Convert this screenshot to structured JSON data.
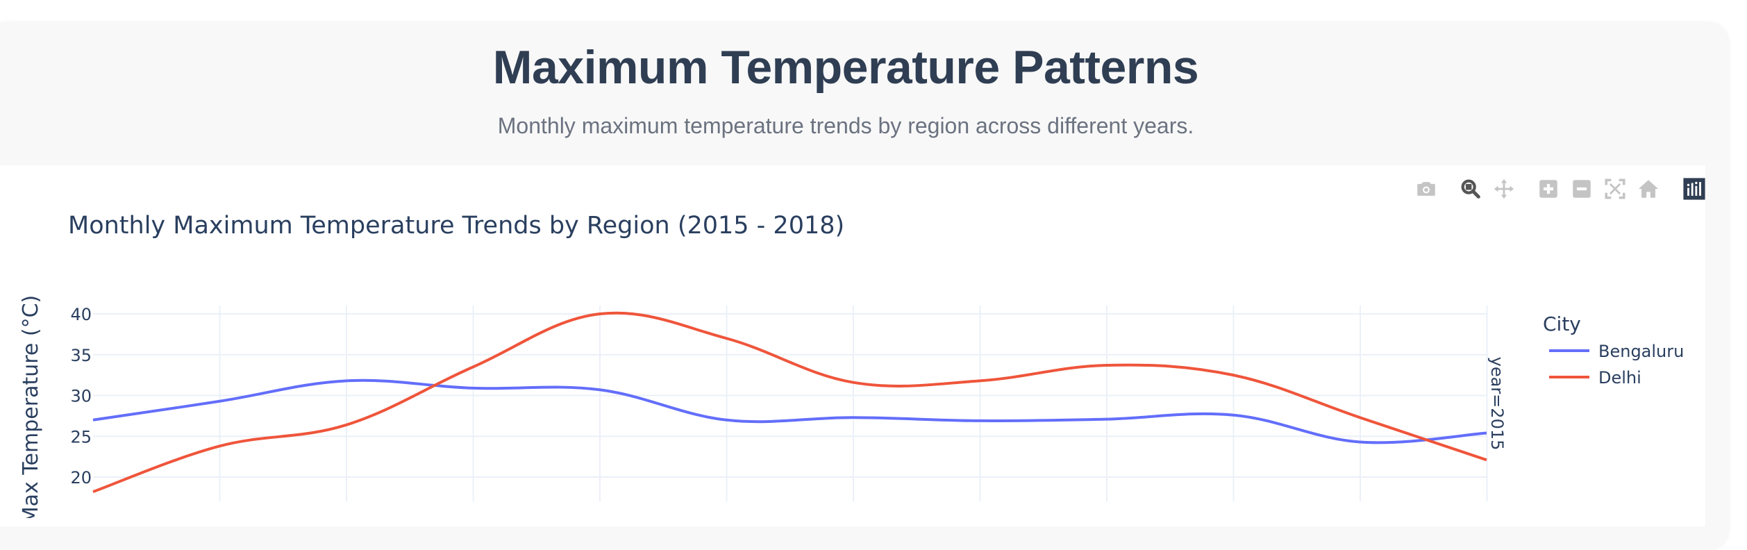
{
  "header": {
    "title": "Maximum Temperature Patterns",
    "subtitle": "Monthly maximum temperature trends by region across different years."
  },
  "modebar": {
    "buttons": [
      "camera-icon",
      "zoom-icon",
      "pan-icon",
      "zoom-in-icon",
      "zoom-out-icon",
      "autoscale-icon",
      "reset-axes-icon",
      "plotly-logo-icon"
    ]
  },
  "colors": {
    "Bengaluru": "#636efa",
    "Delhi": "#ef553b",
    "text": "#2a3f5f",
    "grid": "#ebf0f8"
  },
  "chart_data": {
    "type": "line",
    "title": "Monthly Maximum Temperature Trends by Region (2015 - 2018)",
    "ylabel": "Max Temperature (°C)",
    "legend_title": "City",
    "legend_position": "right",
    "facet_label": "year=2015",
    "grid": true,
    "x": [
      1,
      2,
      3,
      4,
      5,
      6,
      7,
      8,
      9,
      10,
      11,
      12
    ],
    "ylim": [
      17.5,
      41.5
    ],
    "yticks": [
      20,
      25,
      30,
      35,
      40
    ],
    "series": [
      {
        "name": "Bengaluru",
        "color": "#636efa",
        "values": [
          27.0,
          29.3,
          31.8,
          30.9,
          30.7,
          27.0,
          27.3,
          26.9,
          27.1,
          27.6,
          24.3,
          25.4
        ]
      },
      {
        "name": "Delhi",
        "color": "#ef553b",
        "values": [
          18.2,
          23.8,
          26.4,
          33.5,
          40.0,
          37.0,
          31.6,
          31.8,
          33.7,
          32.5,
          27.3,
          22.1
        ]
      }
    ]
  }
}
